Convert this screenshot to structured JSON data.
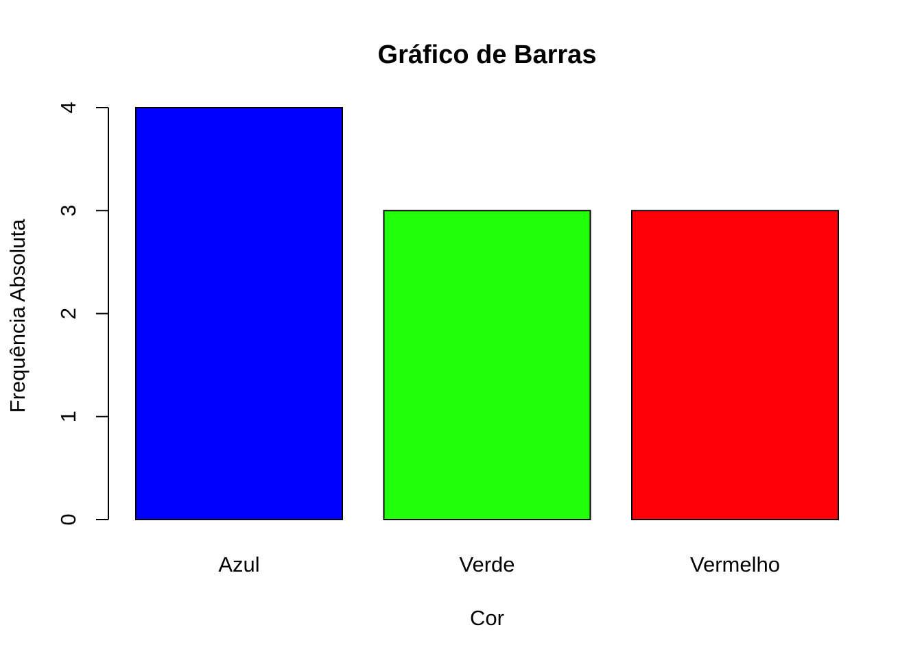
{
  "chart_data": {
    "type": "bar",
    "title": "Gráfico de Barras",
    "xlabel": "Cor",
    "ylabel": "Frequência Absoluta",
    "categories": [
      "Azul",
      "Verde",
      "Vermelho"
    ],
    "values": [
      4,
      3,
      3
    ],
    "colors": [
      "#0000ff",
      "#22ff0a",
      "#ff0008"
    ],
    "ylim": [
      0,
      4
    ],
    "yticks": [
      "0",
      "1",
      "2",
      "3",
      "4"
    ],
    "grid": false,
    "legend": "none"
  }
}
